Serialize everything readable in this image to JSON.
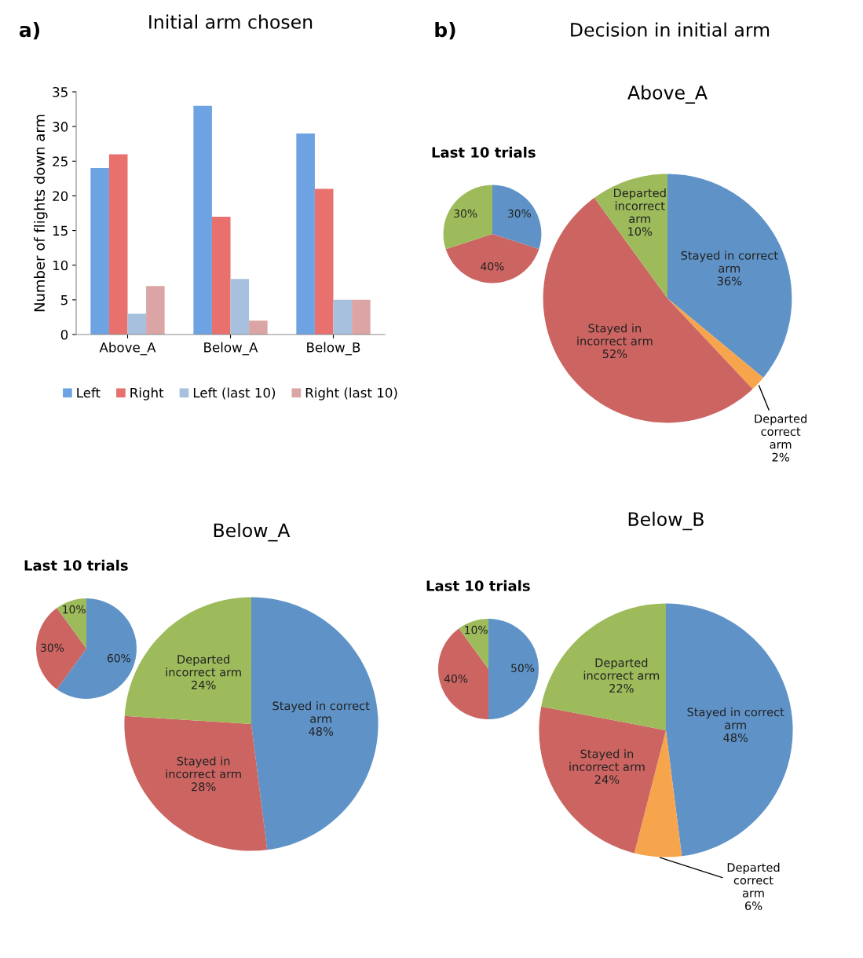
{
  "chart_data": [
    {
      "type": "bar",
      "title": "Initial arm chosen",
      "ylabel": "Number of flights down arm",
      "categories": [
        "Above_A",
        "Below_A",
        "Below_B"
      ],
      "series": [
        {
          "name": "Left",
          "color": "#6ea3e3",
          "values": [
            24,
            33,
            29
          ]
        },
        {
          "name": "Right",
          "color": "#e8716e",
          "values": [
            26,
            17,
            21
          ]
        },
        {
          "name": "Left (last 10)",
          "color": "#a7c0de",
          "values": [
            3,
            8,
            5
          ]
        },
        {
          "name": "Right (last 10)",
          "color": "#dca5a5",
          "values": [
            7,
            2,
            5
          ]
        }
      ],
      "ylim": [
        0,
        35
      ],
      "yticks": [
        0,
        5,
        10,
        15,
        20,
        25,
        30,
        35
      ],
      "grid": false,
      "legend": "bottom",
      "annotations": [
        "a)"
      ]
    },
    {
      "type": "pie",
      "title": "Above_A",
      "categories": [
        "Stayed in correct arm",
        "Departed correct arm",
        "Stayed in incorrect arm",
        "Departed incorrect arm"
      ],
      "values": [
        36,
        2,
        52,
        10
      ],
      "value_labels": [
        "36%",
        "2%",
        "52%",
        "10%"
      ],
      "colors": [
        "#5f93c8",
        "#f6a54c",
        "#cc6561",
        "#9dbb5b"
      ],
      "annotations": [
        "b)",
        "Decision in initial arm"
      ]
    },
    {
      "type": "pie",
      "title": "Last 10 trials",
      "categories": [
        null,
        null,
        null
      ],
      "values": [
        30,
        40,
        30
      ],
      "value_labels": [
        "30%",
        "40%",
        "30%"
      ],
      "colors": [
        "#5f93c8",
        "#cc6561",
        "#9dbb5b"
      ]
    },
    {
      "type": "pie",
      "title": "Below_A",
      "categories": [
        "Stayed in correct arm",
        "Stayed in incorrect arm",
        "Departed incorrect arm"
      ],
      "values": [
        48,
        28,
        24
      ],
      "value_labels": [
        "48%",
        "28%",
        "24%"
      ],
      "colors": [
        "#5f93c8",
        "#cc6561",
        "#9dbb5b"
      ]
    },
    {
      "type": "pie",
      "title": "Last 10 trials",
      "categories": [
        null,
        null,
        null
      ],
      "values": [
        60,
        30,
        10
      ],
      "value_labels": [
        "60%",
        "30%",
        "10%"
      ],
      "colors": [
        "#5f93c8",
        "#cc6561",
        "#9dbb5b"
      ]
    },
    {
      "type": "pie",
      "title": "Below_B",
      "categories": [
        "Stayed in correct arm",
        "Departed correct arm",
        "Stayed in incorrect arm",
        "Departed incorrect arm"
      ],
      "values": [
        48,
        6,
        24,
        22
      ],
      "value_labels": [
        "48%",
        "6%",
        "24%",
        "22%"
      ],
      "colors": [
        "#5f93c8",
        "#f6a54c",
        "#cc6561",
        "#9dbb5b"
      ]
    },
    {
      "type": "pie",
      "title": "Last 10 trials",
      "categories": [
        null,
        null,
        null
      ],
      "values": [
        50,
        40,
        10
      ],
      "value_labels": [
        "50%",
        "40%",
        "10%"
      ],
      "colors": [
        "#5f93c8",
        "#cc6561",
        "#9dbb5b"
      ]
    }
  ]
}
